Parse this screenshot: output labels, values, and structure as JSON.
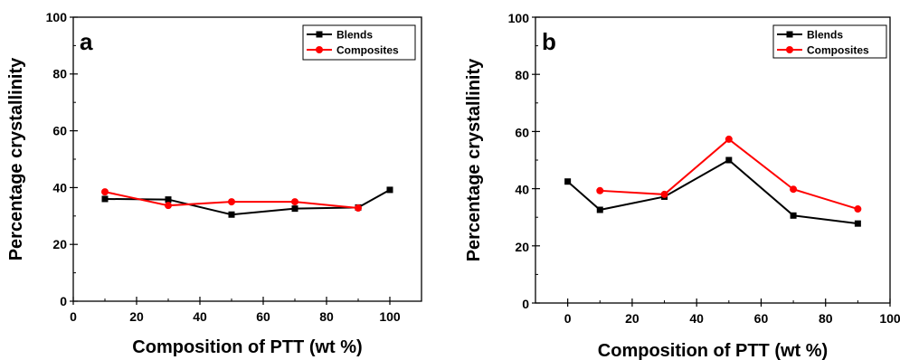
{
  "chart_data": [
    {
      "type": "line",
      "panel_label": "a",
      "xlabel": "Composition of PTT (wt %)",
      "ylabel": "Percentage crystallinity",
      "xlim": [
        0,
        110
      ],
      "ylim": [
        0,
        100
      ],
      "xticks": [
        0,
        20,
        40,
        60,
        80,
        100
      ],
      "yticks": [
        0,
        20,
        40,
        60,
        80,
        100
      ],
      "grid": false,
      "legend_position": "top-right",
      "series": [
        {
          "name": "Blends",
          "color": "#000000",
          "marker": "square",
          "x": [
            10,
            30,
            50,
            70,
            90,
            100
          ],
          "y": [
            36.0,
            35.8,
            30.5,
            32.6,
            33.0,
            39.2
          ]
        },
        {
          "name": "Composites",
          "color": "#ff0000",
          "marker": "circle",
          "x": [
            10,
            30,
            50,
            70,
            90
          ],
          "y": [
            38.5,
            33.7,
            35.0,
            35.0,
            32.8
          ]
        }
      ]
    },
    {
      "type": "line",
      "panel_label": "b",
      "xlabel": "Composition of PTT (wt %)",
      "ylabel": "Percentage crystallinity",
      "xlim": [
        -10,
        100
      ],
      "ylim": [
        0,
        100
      ],
      "xticks": [
        0,
        20,
        40,
        60,
        80,
        100
      ],
      "yticks": [
        0,
        20,
        40,
        60,
        80,
        100
      ],
      "grid": false,
      "legend_position": "top-right",
      "series": [
        {
          "name": "Blends",
          "color": "#000000",
          "marker": "square",
          "x": [
            0,
            10,
            30,
            50,
            70,
            90
          ],
          "y": [
            42.5,
            32.6,
            37.2,
            50.0,
            30.6,
            27.8
          ]
        },
        {
          "name": "Composites",
          "color": "#ff0000",
          "marker": "circle",
          "x": [
            10,
            30,
            50,
            70,
            90
          ],
          "y": [
            39.3,
            38.0,
            57.3,
            39.8,
            32.9
          ]
        }
      ]
    }
  ]
}
